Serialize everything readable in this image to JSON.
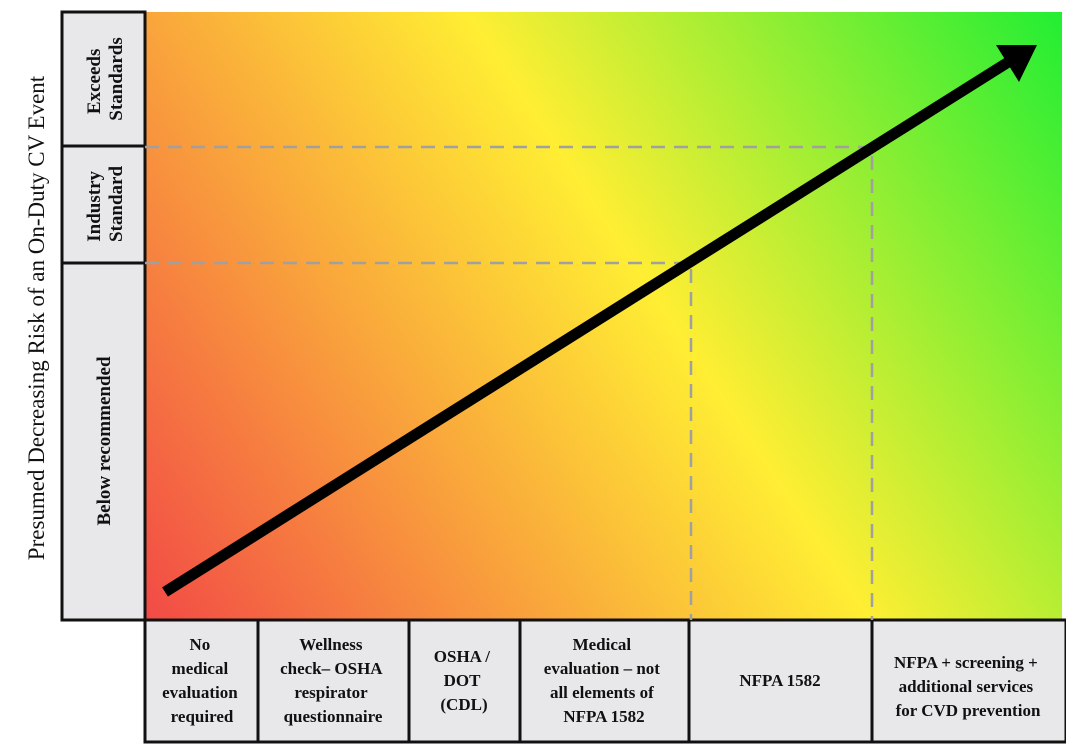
{
  "y_axis": {
    "label": "Presumed Decreasing Risk of an On-Duty CV Event"
  },
  "levels": [
    {
      "lines": [
        "Below recommended"
      ]
    },
    {
      "lines": [
        "Industry",
        "Standard"
      ]
    },
    {
      "lines": [
        "Exceeds",
        "Standards"
      ]
    }
  ],
  "categories": [
    {
      "lines": [
        "No",
        "medical",
        "evaluation",
        "required"
      ]
    },
    {
      "lines": [
        "Wellness",
        "check– OSHA",
        "respirator",
        "questionnaire"
      ]
    },
    {
      "lines": [
        "OSHA /",
        "DOT",
        "(CDL)"
      ]
    },
    {
      "lines": [
        "Medical",
        "evaluation – not",
        "all elements of",
        "NFPA 1582"
      ]
    },
    {
      "lines": [
        "NFPA 1582"
      ]
    },
    {
      "lines": [
        "NFPA + screening +",
        "additional services",
        "for CVD prevention"
      ]
    }
  ],
  "colors": {
    "low_risk": "#22ee33",
    "medium": "#ffee33",
    "high_risk": "#f24a46",
    "box_fill": "#e8e8ea",
    "dash": "#a0a0a0",
    "arrow": "#000000"
  }
}
